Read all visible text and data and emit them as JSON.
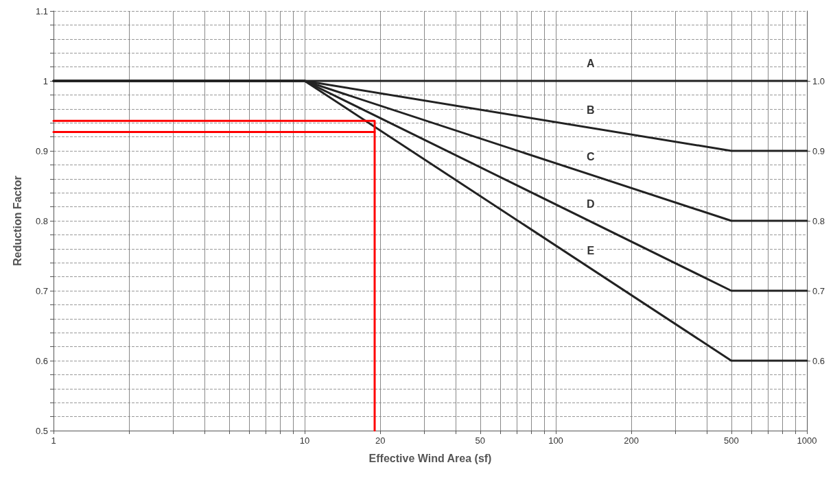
{
  "chart_data": {
    "type": "line",
    "xlabel": "Effective Wind Area (sf)",
    "ylabel": "Reduction Factor",
    "log": "x",
    "grid": true,
    "marker": "none",
    "line_style": "solid",
    "xlim": [
      1,
      1000
    ],
    "xticks": [
      1,
      {
        "value": 2,
        "label": null
      },
      {
        "value": 3,
        "label": null
      },
      {
        "value": 4,
        "label": null
      },
      {
        "value": 5,
        "label": null
      },
      {
        "value": 6,
        "label": null
      },
      {
        "value": 7,
        "label": null
      },
      {
        "value": 8,
        "label": null
      },
      {
        "value": 9,
        "label": null
      },
      10,
      20,
      {
        "value": 30,
        "label": null
      },
      {
        "value": 40,
        "label": null
      },
      50,
      {
        "value": 60,
        "label": null
      },
      {
        "value": 70,
        "label": null
      },
      {
        "value": 80,
        "label": null
      },
      {
        "value": 90,
        "label": null
      },
      100,
      200,
      {
        "value": 300,
        "label": null
      },
      {
        "value": 400,
        "label": null
      },
      500,
      {
        "value": 600,
        "label": null
      },
      {
        "value": 700,
        "label": null
      },
      {
        "value": 800,
        "label": null
      },
      {
        "value": 900,
        "label": null
      },
      1000
    ],
    "ylim": [
      0.5,
      1.1
    ],
    "yticks": [
      0.5,
      {
        "value": 0.52,
        "label": null
      },
      {
        "value": 0.54,
        "label": null
      },
      {
        "value": 0.56,
        "label": null
      },
      {
        "value": 0.58,
        "label": null
      },
      0.6,
      {
        "value": 0.62,
        "label": null
      },
      {
        "value": 0.64,
        "label": null
      },
      {
        "value": 0.66,
        "label": null
      },
      {
        "value": 0.68,
        "label": null
      },
      0.7,
      {
        "value": 0.72,
        "label": null
      },
      {
        "value": 0.74,
        "label": null
      },
      {
        "value": 0.76,
        "label": null
      },
      {
        "value": 0.78,
        "label": null
      },
      0.8,
      {
        "value": 0.82,
        "label": null
      },
      {
        "value": 0.84,
        "label": null
      },
      {
        "value": 0.86,
        "label": null
      },
      {
        "value": 0.88,
        "label": null
      },
      0.9,
      {
        "value": 0.92,
        "label": null
      },
      {
        "value": 0.94,
        "label": null
      },
      {
        "value": 0.96,
        "label": null
      },
      {
        "value": 0.98,
        "label": null
      },
      1,
      {
        "value": 1.02,
        "label": null
      },
      {
        "value": 1.04,
        "label": null
      },
      {
        "value": 1.06,
        "label": null
      },
      {
        "value": 1.08,
        "label": null
      },
      1.1
    ],
    "y2lim": [
      0.5,
      1.1
    ],
    "y2ticks": [
      0.6,
      0.7,
      0.8,
      0.9,
      {
        "value": 1,
        "label": "1.0"
      }
    ],
    "series": [
      {
        "name": "A",
        "color": "#222222",
        "x": [
          1,
          1000
        ],
        "values": [
          1,
          1
        ]
      },
      {
        "name": "B",
        "color": "#222222",
        "x": [
          1,
          10,
          500,
          1000
        ],
        "values": [
          1,
          1,
          0.9,
          0.9
        ]
      },
      {
        "name": "C",
        "color": "#222222",
        "x": [
          1,
          10,
          500,
          1000
        ],
        "values": [
          1,
          1,
          0.8,
          0.8
        ]
      },
      {
        "name": "D",
        "color": "#222222",
        "x": [
          1,
          10,
          500,
          1000
        ],
        "values": [
          1,
          1,
          0.7,
          0.7
        ]
      },
      {
        "name": "E",
        "color": "#222222",
        "x": [
          1,
          10,
          500,
          1000
        ],
        "values": [
          1,
          1,
          0.6,
          0.6
        ]
      },
      {
        "color": "#ff0000",
        "x": [
          1,
          19,
          19
        ],
        "values": [
          0.943,
          0.943,
          0.5
        ]
      },
      {
        "color": "#ff0000",
        "x": [
          1,
          19
        ],
        "values": [
          0.927,
          0.927
        ]
      }
    ]
  }
}
